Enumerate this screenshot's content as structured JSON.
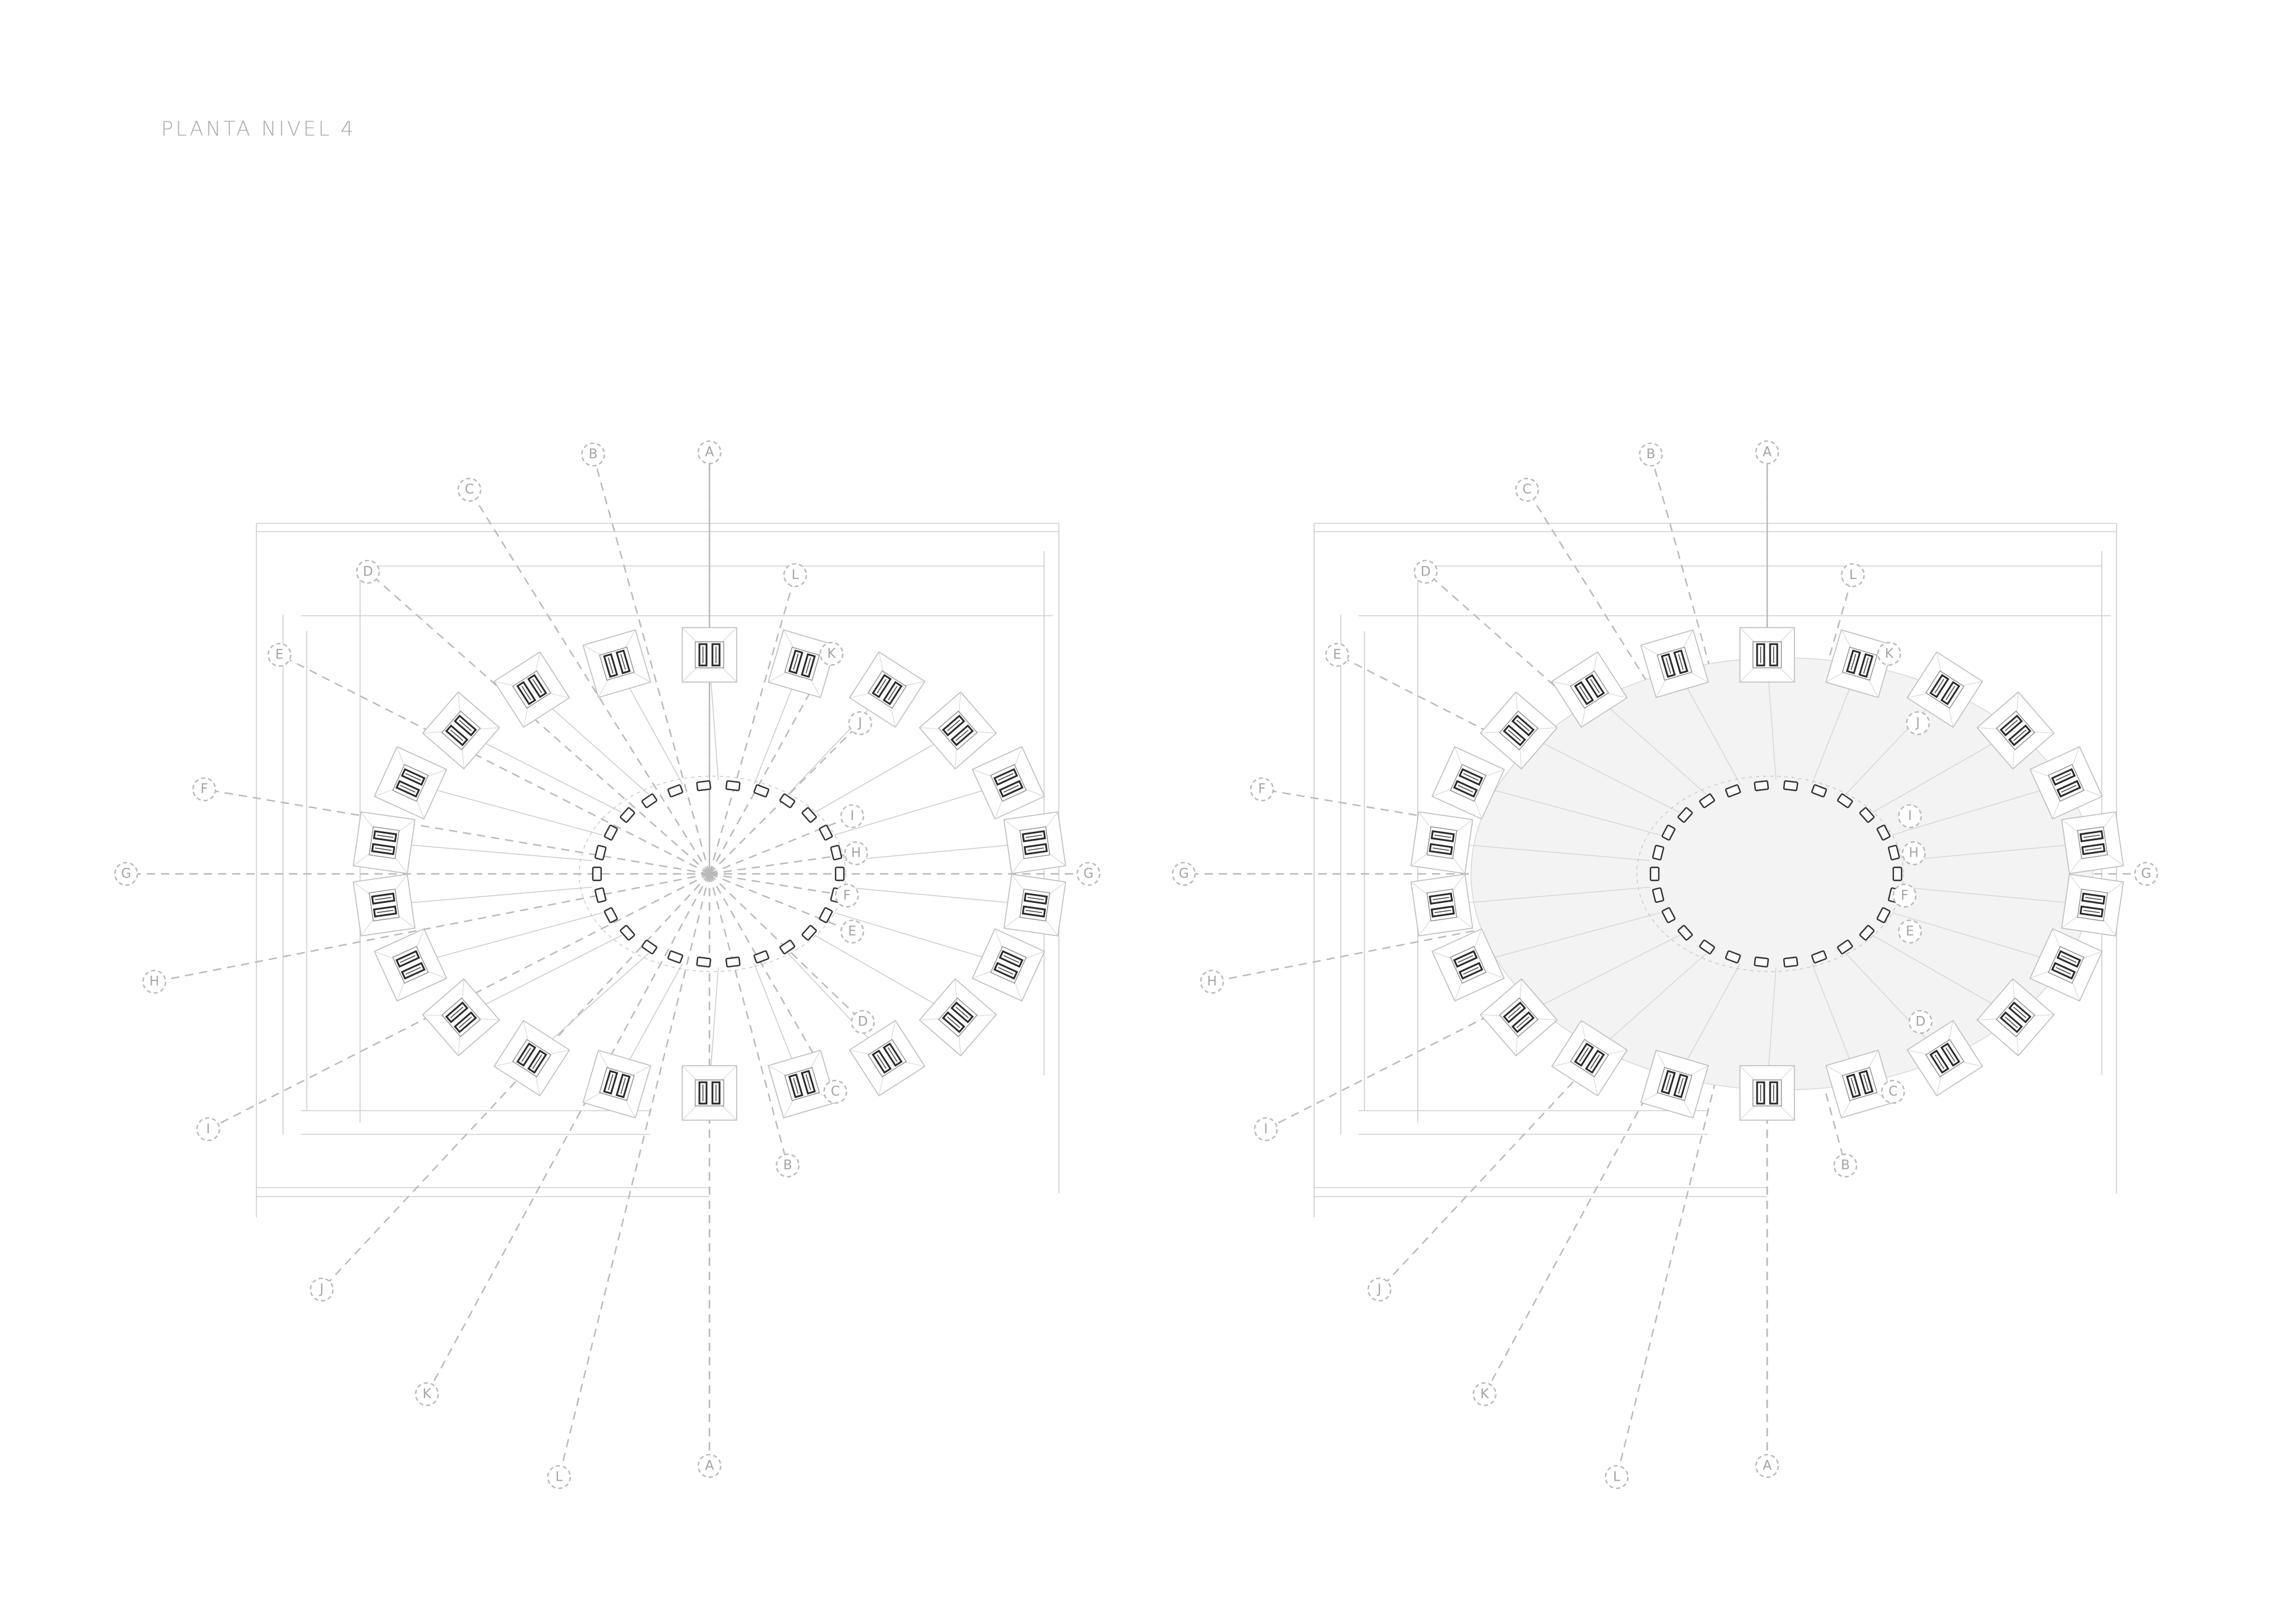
{
  "sheet": {
    "title": "PLANTA NIVEL 4"
  },
  "plans": [
    {
      "id": "left",
      "variant": "structure",
      "slab_filled": false
    },
    {
      "id": "right",
      "variant": "slab",
      "slab_filled": true
    }
  ],
  "axis_labels": [
    "A",
    "B",
    "C",
    "D",
    "E",
    "F",
    "G",
    "H",
    "I",
    "J",
    "K",
    "L"
  ],
  "colors": {
    "title": "#a9a9a9",
    "grid_lines": "#b9b9b9",
    "column": "#2a2a2a",
    "slab_fill": "#f3f3f3"
  }
}
